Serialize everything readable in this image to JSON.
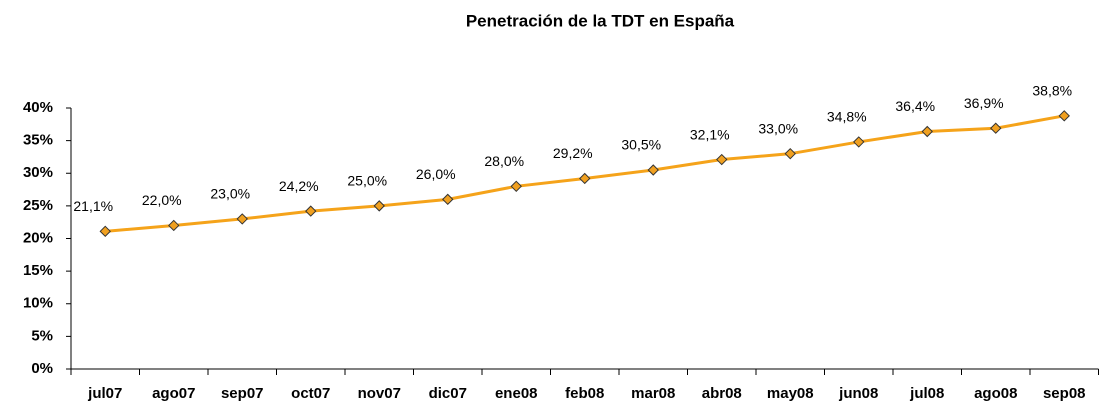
{
  "chart_data": {
    "type": "line",
    "title": "Penetración de la TDT en España",
    "categories": [
      "jul07",
      "ago07",
      "sep07",
      "oct07",
      "nov07",
      "dic07",
      "ene08",
      "feb08",
      "mar08",
      "abr08",
      "may08",
      "jun08",
      "jul08",
      "ago08",
      "sep08"
    ],
    "series": [
      {
        "color": "#f5a31a",
        "marker_color": "#f0a020",
        "values": [
          21.1,
          22.0,
          23.0,
          24.2,
          25.0,
          26.0,
          28.0,
          29.2,
          30.5,
          32.1,
          33.0,
          34.8,
          36.4,
          36.9,
          38.8
        ],
        "value_labels": [
          "21,1%",
          "22,0%",
          "23,0%",
          "24,2%",
          "25,0%",
          "26,0%",
          "28,0%",
          "29,2%",
          "30,5%",
          "32,1%",
          "33,0%",
          "34,8%",
          "36,4%",
          "36,9%",
          "38,8%"
        ]
      }
    ],
    "ylim": [
      0,
      40
    ],
    "yticks": [
      {
        "value": 0,
        "label": "0%"
      },
      {
        "value": 5,
        "label": "5%"
      },
      {
        "value": 10,
        "label": "10%"
      },
      {
        "value": 15,
        "label": "15%"
      },
      {
        "value": 20,
        "label": "20%"
      },
      {
        "value": 25,
        "label": "25%"
      },
      {
        "value": 30,
        "label": "30%"
      },
      {
        "value": 35,
        "label": "35%"
      },
      {
        "value": 40,
        "label": "40%"
      }
    ],
    "grid": false
  }
}
